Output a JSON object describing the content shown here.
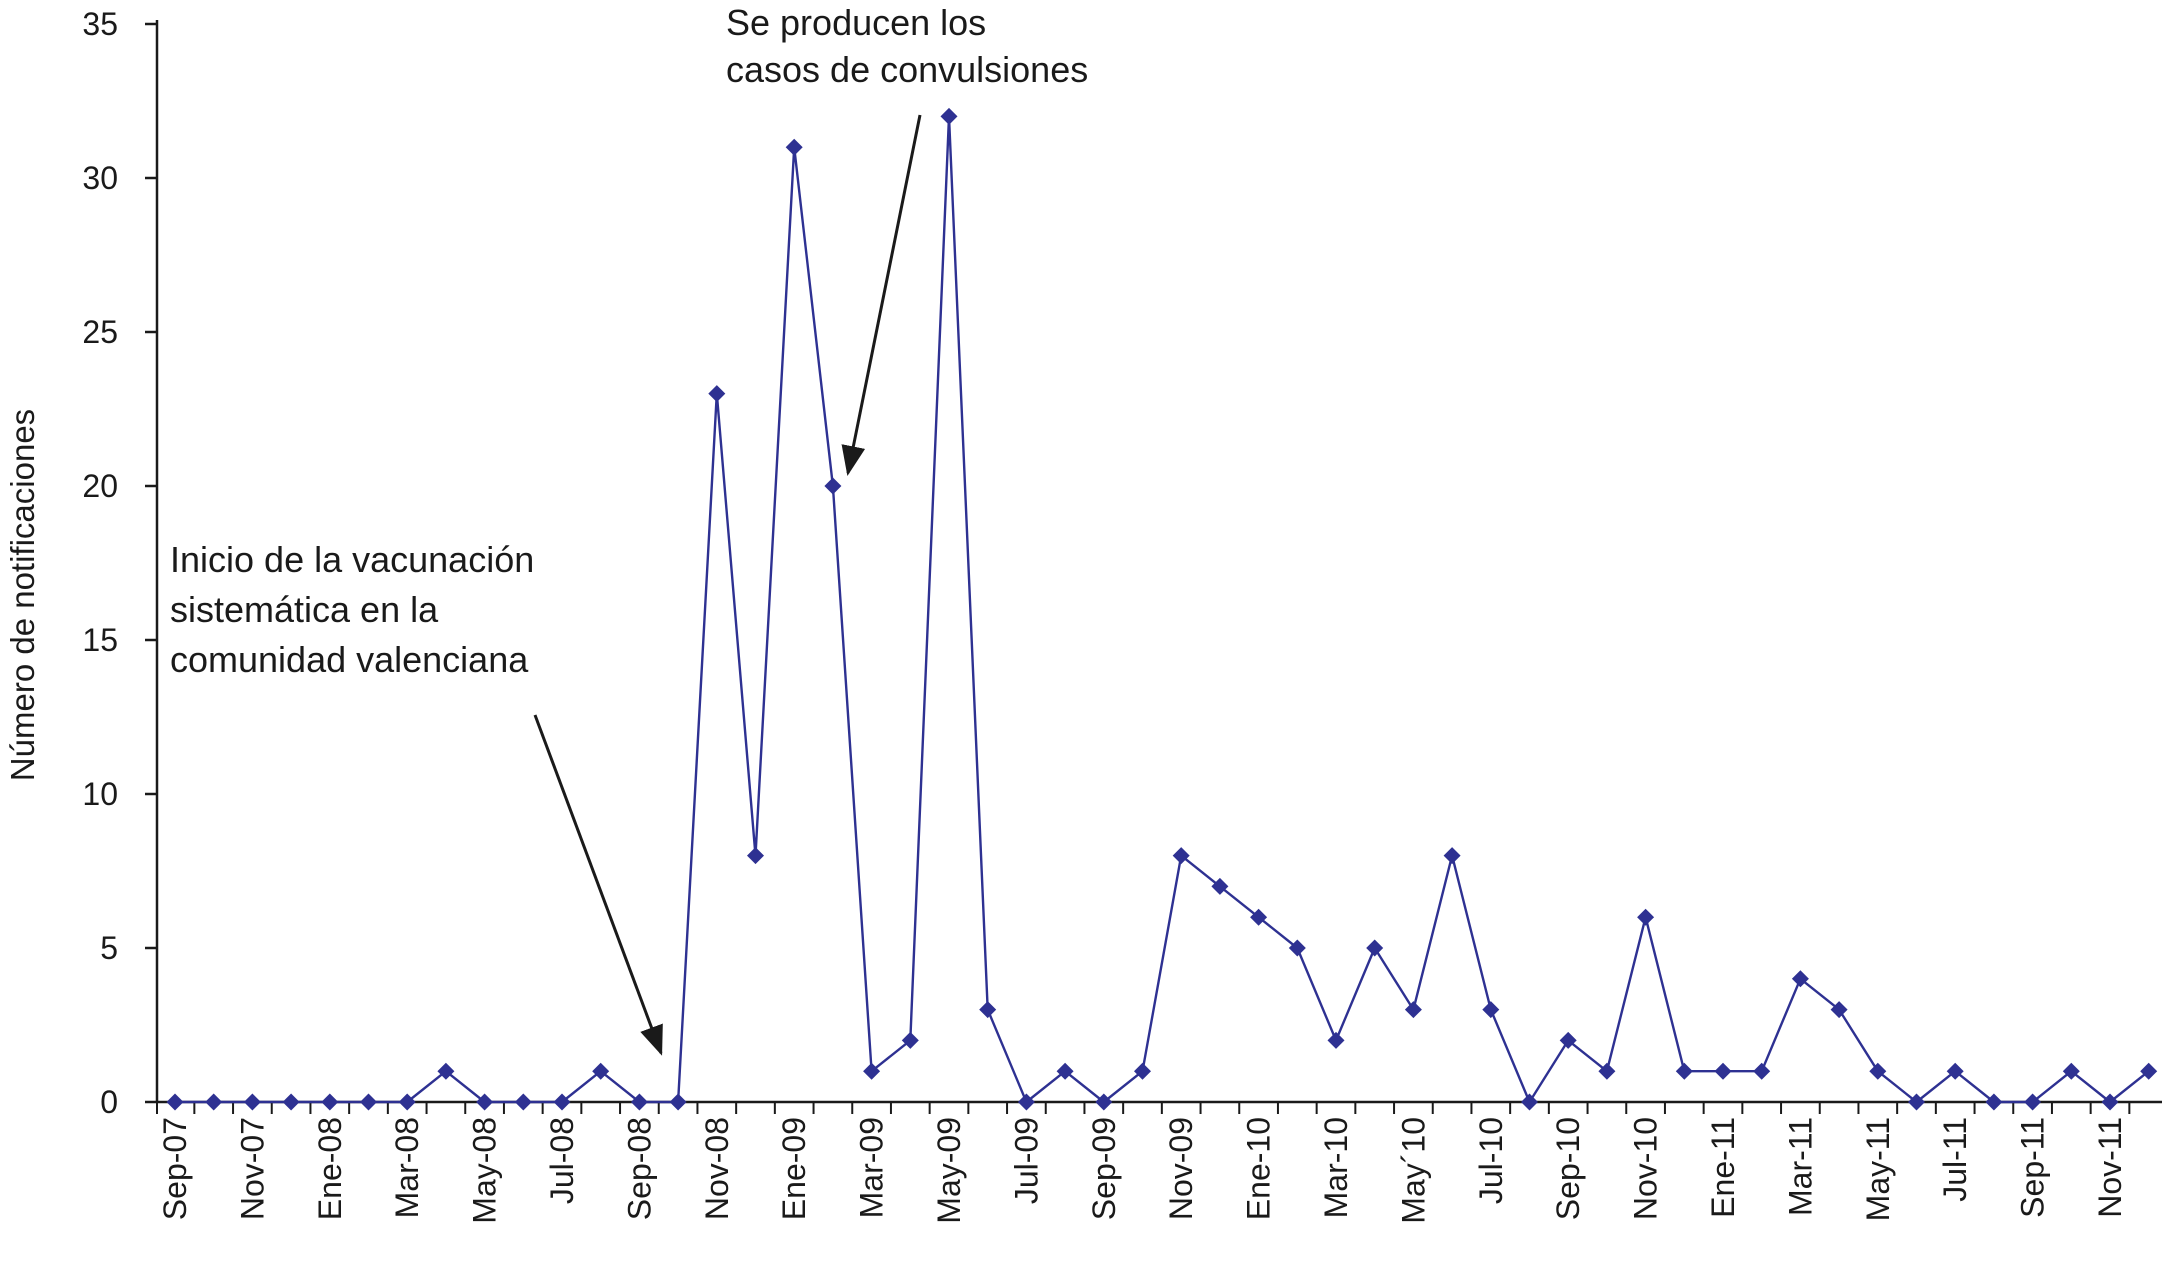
{
  "chart_data": {
    "type": "line",
    "ylabel": "Número de notificaciones",
    "ylim": [
      0,
      35
    ],
    "yticks": [
      0,
      5,
      10,
      15,
      20,
      25,
      30,
      35
    ],
    "grid": false,
    "series_color": "#2E3192",
    "x_tick_labels": [
      "Sep-07",
      "Nov-07",
      "Ene-08",
      "Mar-08",
      "May-08",
      "Jul-08",
      "Sep-08",
      "Nov-08",
      "Ene-09",
      "Mar-09",
      "May-09",
      "Jul-09",
      "Sep-09",
      "Nov-09",
      "Ene-10",
      "Mar-10",
      "May´10",
      "Jul-10",
      "Sep-10",
      "Nov-10",
      "Ene-11",
      "Mar-11",
      "May-11",
      "Jul-11",
      "Sep-11",
      "Nov-11"
    ],
    "values": [
      0,
      0,
      0,
      0,
      0,
      0,
      0,
      1,
      0,
      0,
      0,
      1,
      0,
      0,
      23,
      8,
      31,
      20,
      1,
      2,
      32,
      3,
      0,
      1,
      0,
      1,
      8,
      7,
      6,
      5,
      2,
      5,
      3,
      8,
      3,
      0,
      2,
      1,
      6,
      1,
      1,
      1,
      4,
      3,
      1,
      0,
      1,
      0,
      0,
      1,
      0,
      1
    ],
    "annotations": [
      {
        "lines": [
          "Se producen los",
          "casos de convulsiones"
        ]
      },
      {
        "lines": [
          "Inicio de la vacunación",
          "sistemática en la",
          "comunidad valenciana"
        ]
      }
    ]
  }
}
